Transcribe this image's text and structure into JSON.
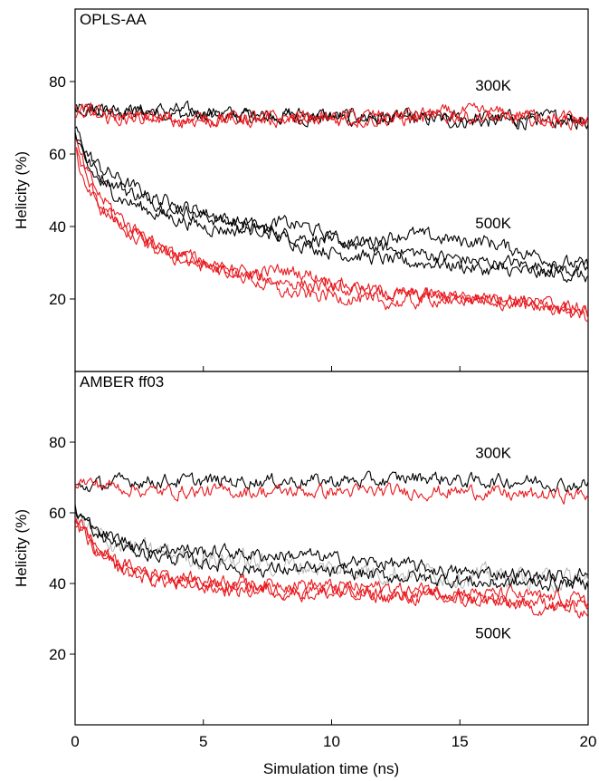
{
  "chart_data": [
    {
      "type": "line",
      "panel_label": "OPLS-AA",
      "xlabel": "",
      "ylabel": "Helicity (%)",
      "xlim": [
        0,
        20
      ],
      "ylim": [
        0,
        100
      ],
      "x_ticks": [
        0,
        5,
        10,
        15,
        20
      ],
      "y_ticks": [
        20,
        40,
        60,
        80
      ],
      "y_tick_labels": [
        "20",
        "40",
        "60",
        "80"
      ],
      "grid": false,
      "annotations": [
        {
          "text": "300K",
          "x": 16.3,
          "y": 79
        },
        {
          "text": "500K",
          "x": 16.3,
          "y": 41
        }
      ],
      "series_colors": {
        "black": "#000000",
        "red": "#e8191e"
      },
      "series": [
        {
          "color": "black",
          "x": [
            0,
            1,
            2,
            3,
            4,
            5,
            6,
            7,
            8,
            9,
            10,
            11,
            12,
            13,
            14,
            15,
            16,
            17,
            18,
            19,
            20
          ],
          "values": [
            72,
            72,
            71.5,
            71.5,
            71,
            70.5,
            70.5,
            70,
            70,
            70,
            70,
            69.5,
            69.5,
            69.5,
            69.5,
            69,
            69,
            69,
            69,
            69,
            69
          ]
        },
        {
          "color": "black",
          "x": [
            0,
            1,
            2,
            3,
            4,
            5,
            6,
            7,
            8,
            9,
            10,
            11,
            12,
            13,
            14,
            15,
            16,
            17,
            18,
            19,
            20
          ],
          "values": [
            73,
            72.5,
            72,
            72,
            72,
            71.5,
            71,
            71,
            71,
            71,
            70.5,
            70.5,
            70,
            70,
            70,
            70,
            70,
            70,
            70,
            70,
            70
          ]
        },
        {
          "color": "red",
          "x": [
            0,
            1,
            2,
            3,
            4,
            5,
            6,
            7,
            8,
            9,
            10,
            11,
            12,
            13,
            14,
            15,
            16,
            17,
            18,
            19,
            20
          ],
          "values": [
            71,
            70,
            69.5,
            69.5,
            69.5,
            69.5,
            69.5,
            69.5,
            69.5,
            69.5,
            69.5,
            69.5,
            69.5,
            69.5,
            70,
            70.5,
            70,
            69.5,
            69.5,
            69,
            69
          ]
        },
        {
          "color": "red",
          "x": [
            0,
            1,
            2,
            3,
            4,
            5,
            6,
            7,
            8,
            9,
            10,
            11,
            12,
            13,
            14,
            15,
            16,
            17,
            18,
            19,
            20
          ],
          "values": [
            74,
            71,
            70,
            70,
            69.5,
            69.5,
            70,
            70,
            70,
            70,
            70,
            70.5,
            70.5,
            71,
            71,
            71.5,
            71.5,
            71,
            70.5,
            70,
            69
          ]
        },
        {
          "color": "black",
          "x": [
            0,
            0.5,
            1,
            2,
            3,
            4,
            5,
            6,
            7,
            8,
            9,
            10,
            11,
            12,
            13,
            14,
            15,
            16,
            17,
            18,
            19,
            20
          ],
          "values": [
            66,
            58,
            54,
            50,
            47,
            45,
            43,
            41,
            40,
            38,
            37,
            36,
            35,
            34,
            33,
            32,
            31,
            30,
            30,
            29,
            28,
            28
          ]
        },
        {
          "color": "black",
          "x": [
            0,
            0.5,
            1,
            2,
            3,
            4,
            5,
            6,
            7,
            8,
            9,
            10,
            11,
            12,
            13,
            14,
            15,
            16,
            17,
            18,
            19,
            20
          ],
          "values": [
            67,
            60,
            56,
            52,
            48,
            46,
            44,
            42,
            40,
            37,
            35,
            33,
            32,
            31,
            30,
            30,
            29,
            28,
            28,
            27,
            27,
            26
          ]
        },
        {
          "color": "black",
          "x": [
            0,
            0.5,
            1,
            2,
            3,
            4,
            5,
            6,
            7,
            8,
            9,
            10,
            11,
            12,
            13,
            14,
            15,
            16,
            17,
            18,
            19,
            20
          ],
          "values": [
            65,
            56,
            52,
            47,
            44,
            42,
            40,
            39,
            39,
            41,
            40,
            37,
            35,
            37,
            38,
            37,
            36,
            36,
            34,
            32,
            30,
            29
          ]
        },
        {
          "color": "red",
          "x": [
            0,
            0.5,
            1,
            2,
            3,
            4,
            5,
            6,
            7,
            8,
            9,
            10,
            11,
            12,
            13,
            14,
            15,
            16,
            17,
            18,
            19,
            20
          ],
          "values": [
            62,
            52,
            46,
            38,
            34,
            31,
            29,
            27,
            26,
            25,
            24,
            23,
            22,
            21,
            21,
            21,
            20,
            20,
            20,
            19,
            18,
            17
          ]
        },
        {
          "color": "red",
          "x": [
            0,
            0.5,
            1,
            2,
            3,
            4,
            5,
            6,
            7,
            8,
            9,
            10,
            11,
            12,
            13,
            14,
            15,
            16,
            17,
            18,
            19,
            20
          ],
          "values": [
            63,
            54,
            48,
            41,
            36,
            32,
            29,
            28,
            27,
            28,
            27,
            25,
            23,
            22,
            21,
            21,
            20,
            20,
            20,
            19,
            18,
            16
          ]
        },
        {
          "color": "red",
          "x": [
            0,
            0.5,
            1,
            2,
            3,
            4,
            5,
            6,
            7,
            8,
            9,
            10,
            11,
            12,
            13,
            14,
            15,
            16,
            17,
            18,
            19,
            20
          ],
          "values": [
            60,
            50,
            45,
            39,
            35,
            33,
            30,
            28,
            25,
            22,
            21,
            21,
            20,
            19,
            19,
            20,
            20,
            20,
            19,
            18,
            17,
            15
          ]
        }
      ]
    },
    {
      "type": "line",
      "panel_label": "AMBER ff03",
      "xlabel": "Simulation time (ns)",
      "ylabel": "Helicity (%)",
      "xlim": [
        0,
        20
      ],
      "ylim": [
        0,
        100
      ],
      "x_ticks": [
        0,
        5,
        10,
        15,
        20
      ],
      "x_tick_labels": [
        "0",
        "5",
        "10",
        "15",
        "20"
      ],
      "y_ticks": [
        20,
        40,
        60,
        80
      ],
      "y_tick_labels": [
        "20",
        "40",
        "60",
        "80"
      ],
      "grid": false,
      "annotations": [
        {
          "text": "300K",
          "x": 16.3,
          "y": 77
        },
        {
          "text": "500K",
          "x": 16.3,
          "y": 26
        }
      ],
      "series_colors": {
        "black": "#000000",
        "red": "#e8191e",
        "gray": "#b0b0b0"
      },
      "series": [
        {
          "color": "black",
          "x": [
            0,
            1,
            2,
            3,
            4,
            5,
            6,
            7,
            8,
            9,
            10,
            11,
            12,
            13,
            14,
            15,
            16,
            17,
            18,
            19,
            20
          ],
          "values": [
            67,
            68,
            69,
            69,
            69,
            69,
            69,
            69,
            69,
            69,
            69,
            69,
            69,
            70,
            70,
            69,
            69,
            69,
            69,
            68,
            68
          ]
        },
        {
          "color": "red",
          "x": [
            0,
            1,
            2,
            3,
            4,
            5,
            6,
            7,
            8,
            9,
            10,
            11,
            12,
            13,
            14,
            15,
            16,
            17,
            18,
            19,
            20
          ],
          "values": [
            69,
            68,
            67,
            66,
            66,
            66,
            66,
            66,
            66,
            66,
            66,
            66,
            66,
            66,
            66,
            66,
            66,
            65,
            65,
            65,
            65
          ]
        },
        {
          "color": "gray",
          "x": [
            0,
            1,
            2,
            3,
            4,
            5,
            6,
            7,
            8,
            9,
            10,
            11,
            12,
            13,
            14,
            15,
            16,
            17,
            18,
            19,
            20
          ],
          "values": [
            58,
            53,
            50,
            49,
            48,
            47,
            47,
            46,
            45,
            45,
            44,
            44,
            43,
            43,
            43,
            42,
            42,
            42,
            41,
            41,
            41
          ]
        },
        {
          "color": "black",
          "x": [
            0,
            1,
            2,
            3,
            4,
            5,
            6,
            7,
            8,
            9,
            10,
            11,
            12,
            13,
            14,
            15,
            16,
            17,
            18,
            19,
            20
          ],
          "values": [
            60,
            54,
            52,
            50,
            50,
            49,
            49,
            48,
            48,
            48,
            47,
            46,
            46,
            45,
            44,
            43,
            43,
            43,
            42,
            42,
            43
          ]
        },
        {
          "color": "black",
          "x": [
            0,
            1,
            2,
            3,
            4,
            5,
            6,
            7,
            8,
            9,
            10,
            11,
            12,
            13,
            14,
            15,
            16,
            17,
            18,
            19,
            20
          ],
          "values": [
            61,
            53,
            50,
            48,
            47,
            46,
            45,
            44,
            44,
            44,
            43,
            43,
            42,
            42,
            41,
            41,
            40,
            40,
            40,
            40,
            40
          ]
        },
        {
          "color": "red",
          "x": [
            0,
            1,
            2,
            3,
            4,
            5,
            6,
            7,
            8,
            9,
            10,
            11,
            12,
            13,
            14,
            15,
            16,
            17,
            18,
            19,
            20
          ],
          "values": [
            59,
            49,
            45,
            43,
            42,
            41,
            41,
            40,
            40,
            40,
            39,
            39,
            39,
            38,
            38,
            38,
            37,
            37,
            36,
            36,
            35
          ]
        },
        {
          "color": "red",
          "x": [
            0,
            1,
            2,
            3,
            4,
            5,
            6,
            7,
            8,
            9,
            10,
            11,
            12,
            13,
            14,
            15,
            16,
            17,
            18,
            19,
            20
          ],
          "values": [
            58,
            48,
            44,
            42,
            40,
            40,
            39,
            39,
            38,
            38,
            38,
            38,
            37,
            37,
            37,
            36,
            36,
            35,
            35,
            34,
            34
          ]
        },
        {
          "color": "red",
          "x": [
            0,
            1,
            2,
            3,
            4,
            5,
            6,
            7,
            8,
            9,
            10,
            11,
            12,
            13,
            14,
            15,
            16,
            17,
            18,
            19,
            20
          ],
          "values": [
            57,
            47,
            43,
            41,
            40,
            39,
            38,
            38,
            38,
            37,
            37,
            37,
            36,
            36,
            36,
            35,
            35,
            34,
            33,
            33,
            32
          ]
        }
      ]
    }
  ]
}
